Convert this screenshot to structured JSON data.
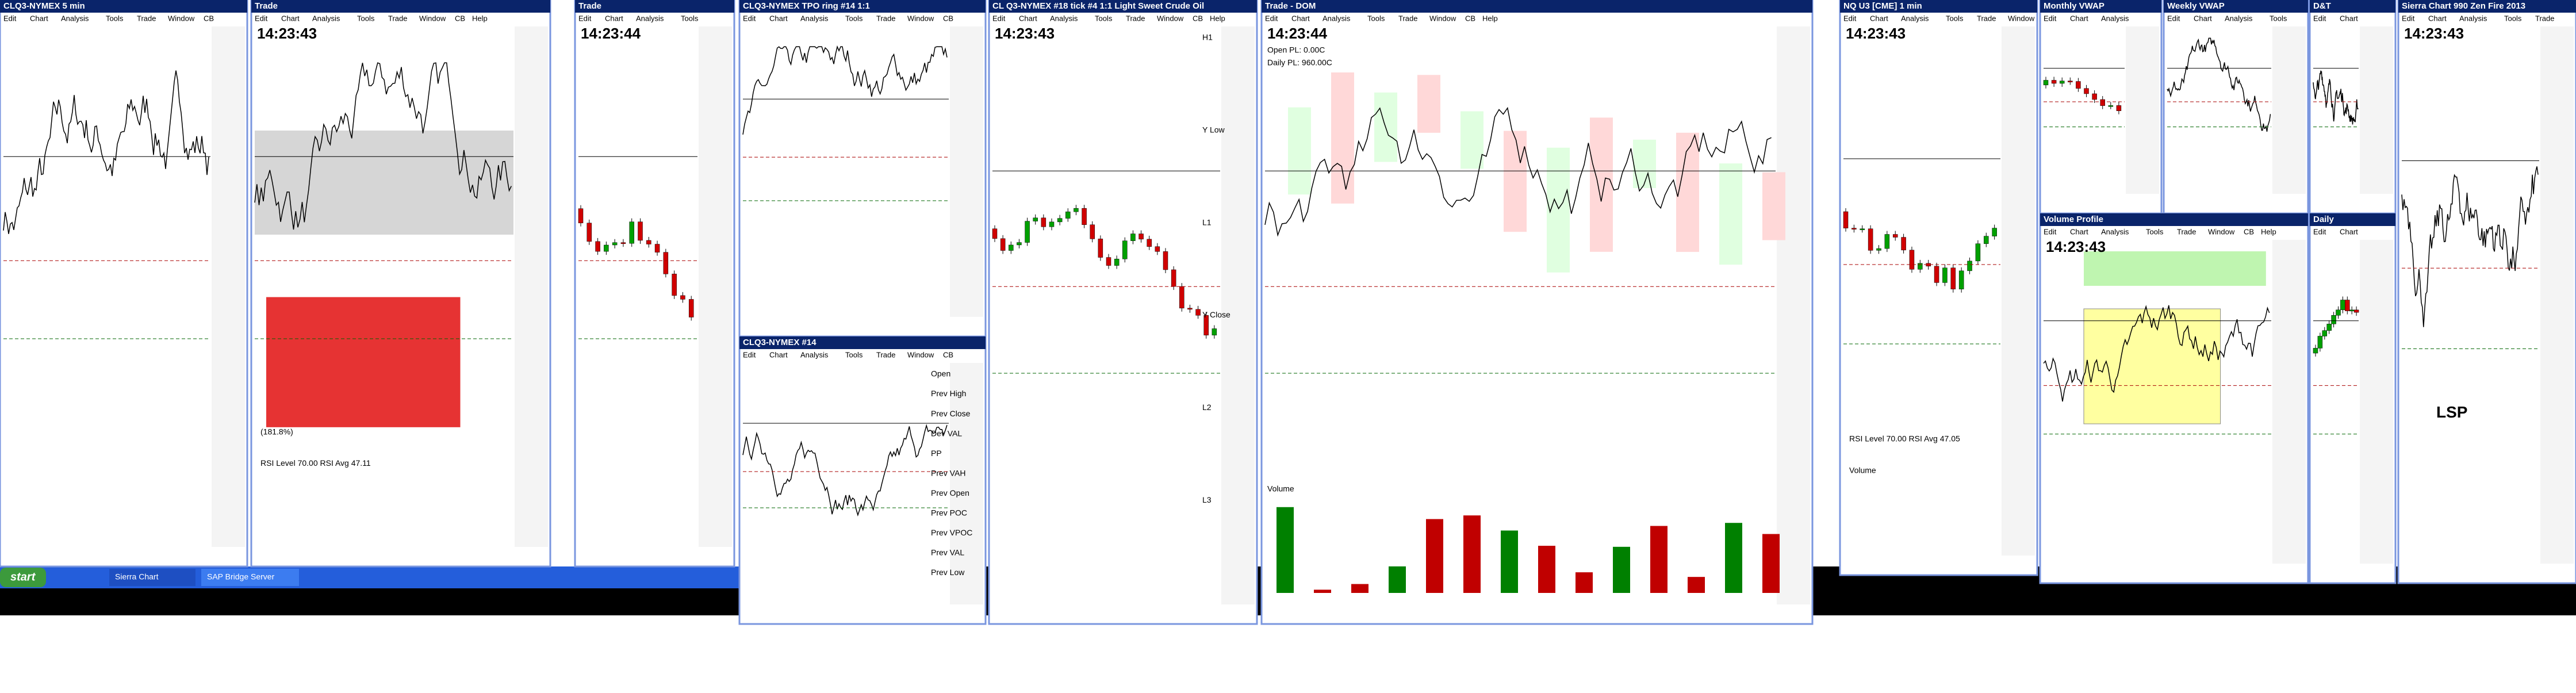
{
  "menu": [
    "Edit",
    "Chart",
    "Analysis",
    "Tools",
    "Trade",
    "Window",
    "CB",
    "Help"
  ],
  "windows": [
    {
      "title": "CLQ3-NYMEX 5 min",
      "clock": null,
      "labels": []
    },
    {
      "title": "Trade",
      "clock": "14:23:43",
      "labels": [
        "(181.8%)",
        "RSI Level 70.00 RSI Avg 47.11"
      ]
    },
    {
      "title": "Trade",
      "clock": "14:23:44",
      "labels": []
    },
    {
      "title": "CLQ3-NYMEX TPO ring #14 1:1",
      "clock": null,
      "labels": []
    },
    {
      "title": "CLQ3-NYMEX #14",
      "clock": null,
      "labels": [
        "Open",
        "Prev High",
        "Prev Close",
        "Dev VAL",
        "PP",
        "Prev VAH",
        "Prev Open",
        "Prev POC",
        "Prev VPOC",
        "Prev VAL",
        "Prev Low"
      ]
    },
    {
      "title": "CL Q3-NYMEX #18 tick #4 1:1 Light Sweet Crude Oil",
      "clock": "14:23:43",
      "labels": [
        "H1",
        "Y Low",
        "L1",
        "Y Close",
        "L2",
        "L3"
      ]
    },
    {
      "title": "Trade - DOM",
      "clock": "14:23:44",
      "labels": [
        "Open PL: 0.00C",
        "Daily PL: 960.00C",
        "Volume"
      ]
    },
    {
      "title": "NQ U3 [CME] 1 min",
      "clock": "14:23:43",
      "labels": [
        "RSI Level 70.00 RSI Avg 47.05",
        "Volume"
      ]
    },
    {
      "title": "Monthly VWAP",
      "clock": null,
      "labels": []
    },
    {
      "title": "Weekly VWAP",
      "clock": null,
      "labels": []
    },
    {
      "title": "D&T",
      "clock": null,
      "labels": []
    },
    {
      "title": "Volume Profile",
      "clock": "14:23:43",
      "labels": []
    },
    {
      "title": "Daily",
      "clock": null,
      "labels": []
    },
    {
      "title": "Sierra Chart 990 Zen Fire 2013",
      "clock": "14:23:43",
      "labels": [
        "LSP"
      ]
    }
  ],
  "taskbar": {
    "start": "start",
    "items": [
      "Sierra Chart",
      "SAP Bridge Server"
    ]
  }
}
